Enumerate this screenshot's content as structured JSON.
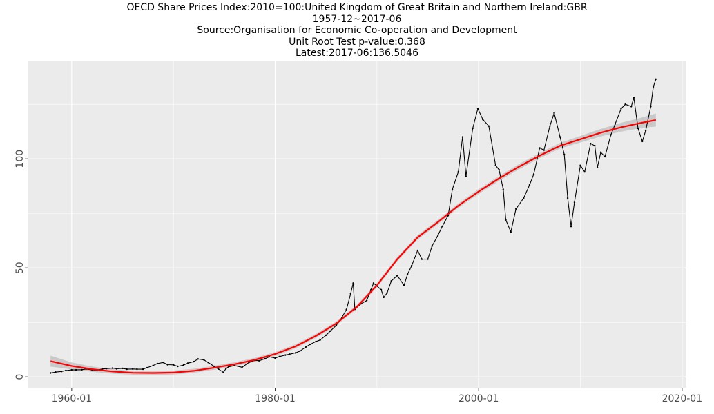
{
  "colors": {
    "panel_background": "#EBEBEB",
    "grid_major": "#FFFFFF",
    "series_line": "#000000",
    "trend_line": "#FF0000",
    "confidence_band": "#BDBDBD"
  },
  "chart_data": {
    "type": "line",
    "title_lines": [
      "OECD Share Prices Index:2010=100:United Kingdom of Great Britain and Northern Ireland:GBR",
      "1957-12~2017-06",
      "Source:Organisation for Economic Co-operation and Development",
      "Unit Root Test p-value:0.368",
      "Latest:2017-06:136.5046"
    ],
    "xlabel": "",
    "ylabel": "",
    "x_axis": {
      "type": "date",
      "range": [
        "1955-09",
        "2020-06"
      ],
      "ticks": [
        1960,
        1980,
        2000,
        2020
      ],
      "tick_labels": [
        "1960-01",
        "1980-01",
        "2000-01",
        "2020-01"
      ]
    },
    "y_axis": {
      "range": [
        -5,
        145
      ],
      "ticks": [
        0,
        50,
        100
      ],
      "tick_labels": [
        "0",
        "50",
        "100"
      ]
    },
    "grid": true,
    "legend": "none",
    "series": [
      {
        "role": "observed",
        "style": "black line with point markers",
        "points": [
          [
            "1957-12",
            1.8
          ],
          [
            "1958-06",
            2.2
          ],
          [
            "1959-01",
            2.5
          ],
          [
            "1959-06",
            2.9
          ],
          [
            "1960-01",
            3.2
          ],
          [
            "1960-06",
            3.2
          ],
          [
            "1961-01",
            3.3
          ],
          [
            "1961-06",
            3.6
          ],
          [
            "1962-01",
            3.2
          ],
          [
            "1962-06",
            3.0
          ],
          [
            "1963-01",
            3.6
          ],
          [
            "1963-06",
            3.8
          ],
          [
            "1964-01",
            4.0
          ],
          [
            "1964-06",
            3.7
          ],
          [
            "1965-01",
            3.9
          ],
          [
            "1965-06",
            3.5
          ],
          [
            "1966-01",
            3.6
          ],
          [
            "1966-06",
            3.5
          ],
          [
            "1967-01",
            3.5
          ],
          [
            "1967-06",
            4.2
          ],
          [
            "1968-01",
            5.2
          ],
          [
            "1968-06",
            6.1
          ],
          [
            "1969-01",
            6.6
          ],
          [
            "1969-06",
            5.6
          ],
          [
            "1970-01",
            5.5
          ],
          [
            "1970-06",
            4.8
          ],
          [
            "1971-01",
            5.4
          ],
          [
            "1971-06",
            6.3
          ],
          [
            "1972-01",
            7.0
          ],
          [
            "1972-06",
            8.2
          ],
          [
            "1973-01",
            7.8
          ],
          [
            "1973-06",
            6.6
          ],
          [
            "1974-01",
            4.8
          ],
          [
            "1974-06",
            3.6
          ],
          [
            "1974-12",
            2.1
          ],
          [
            "1975-03",
            3.8
          ],
          [
            "1975-06",
            4.6
          ],
          [
            "1976-01",
            5.2
          ],
          [
            "1976-10",
            4.4
          ],
          [
            "1977-06",
            6.6
          ],
          [
            "1978-01",
            7.6
          ],
          [
            "1978-06",
            7.4
          ],
          [
            "1979-01",
            8.3
          ],
          [
            "1979-06",
            9.2
          ],
          [
            "1980-01",
            8.6
          ],
          [
            "1980-06",
            9.3
          ],
          [
            "1981-01",
            10.0
          ],
          [
            "1981-06",
            10.4
          ],
          [
            "1982-01",
            11.0
          ],
          [
            "1982-06",
            11.8
          ],
          [
            "1983-01",
            13.6
          ],
          [
            "1983-06",
            14.9
          ],
          [
            "1984-01",
            16.2
          ],
          [
            "1984-06",
            16.9
          ],
          [
            "1985-01",
            19.1
          ],
          [
            "1985-06",
            21.0
          ],
          [
            "1986-01",
            23.6
          ],
          [
            "1986-06",
            26.2
          ],
          [
            "1987-01",
            30.9
          ],
          [
            "1987-06",
            38.1
          ],
          [
            "1987-09",
            43.0
          ],
          [
            "1987-11",
            31.0
          ],
          [
            "1988-06",
            33.5
          ],
          [
            "1989-01",
            35.0
          ],
          [
            "1989-06",
            40.0
          ],
          [
            "1989-09",
            43.0
          ],
          [
            "1990-06",
            40.0
          ],
          [
            "1990-09",
            36.5
          ],
          [
            "1991-01",
            38.5
          ],
          [
            "1991-06",
            44.0
          ],
          [
            "1992-01",
            46.5
          ],
          [
            "1992-09",
            42.0
          ],
          [
            "1993-01",
            47.0
          ],
          [
            "1993-06",
            51.0
          ],
          [
            "1994-01",
            58.0
          ],
          [
            "1994-06",
            54.0
          ],
          [
            "1995-01",
            54.0
          ],
          [
            "1995-06",
            60.0
          ],
          [
            "1996-01",
            65.0
          ],
          [
            "1996-06",
            69.0
          ],
          [
            "1997-01",
            74.0
          ],
          [
            "1997-06",
            86.0
          ],
          [
            "1998-01",
            94.0
          ],
          [
            "1998-06",
            110.0
          ],
          [
            "1998-10",
            92.0
          ],
          [
            "1999-06",
            114.0
          ],
          [
            "1999-12",
            123.0
          ],
          [
            "2000-06",
            118.0
          ],
          [
            "2001-01",
            115.0
          ],
          [
            "2001-09",
            97.0
          ],
          [
            "2002-01",
            95.0
          ],
          [
            "2002-06",
            86.0
          ],
          [
            "2002-09",
            72.0
          ],
          [
            "2003-03",
            66.5
          ],
          [
            "2003-09",
            77.0
          ],
          [
            "2004-06",
            82.0
          ],
          [
            "2005-01",
            88.0
          ],
          [
            "2005-06",
            93.0
          ],
          [
            "2006-01",
            105.0
          ],
          [
            "2006-06",
            104.0
          ],
          [
            "2007-01",
            115.0
          ],
          [
            "2007-06",
            121.0
          ],
          [
            "2008-01",
            110.0
          ],
          [
            "2008-06",
            102.0
          ],
          [
            "2008-10",
            82.0
          ],
          [
            "2009-02",
            69.0
          ],
          [
            "2009-06",
            80.0
          ],
          [
            "2010-01",
            97.0
          ],
          [
            "2010-06",
            94.0
          ],
          [
            "2011-01",
            107.0
          ],
          [
            "2011-06",
            106.0
          ],
          [
            "2011-09",
            96.0
          ],
          [
            "2012-01",
            103.0
          ],
          [
            "2012-06",
            101.0
          ],
          [
            "2013-01",
            111.0
          ],
          [
            "2013-06",
            116.0
          ],
          [
            "2014-01",
            123.0
          ],
          [
            "2014-06",
            125.0
          ],
          [
            "2015-01",
            124.0
          ],
          [
            "2015-04",
            128.0
          ],
          [
            "2015-09",
            114.0
          ],
          [
            "2016-02",
            108.0
          ],
          [
            "2016-06",
            113.0
          ],
          [
            "2016-12",
            124.0
          ],
          [
            "2017-03",
            133.0
          ],
          [
            "2017-06",
            136.5046
          ]
        ]
      },
      {
        "role": "smoothed trend",
        "style": "red line with grey confidence band",
        "points": [
          [
            "1957-12",
            7.2
          ],
          [
            "1960-01",
            5.0
          ],
          [
            "1962-01",
            3.5
          ],
          [
            "1964-01",
            2.5
          ],
          [
            "1966-01",
            1.9
          ],
          [
            "1968-01",
            1.8
          ],
          [
            "1970-01",
            2.0
          ],
          [
            "1972-01",
            2.8
          ],
          [
            "1974-01",
            4.2
          ],
          [
            "1976-01",
            5.8
          ],
          [
            "1978-01",
            7.8
          ],
          [
            "1980-01",
            10.5
          ],
          [
            "1982-01",
            14.0
          ],
          [
            "1984-01",
            18.8
          ],
          [
            "1986-01",
            24.5
          ],
          [
            "1988-01",
            32.0
          ],
          [
            "1990-01",
            42.0
          ],
          [
            "1992-01",
            54.0
          ],
          [
            "1994-01",
            64.0
          ],
          [
            "1996-01",
            71.0
          ],
          [
            "1998-01",
            78.5
          ],
          [
            "2000-01",
            85.0
          ],
          [
            "2002-01",
            91.0
          ],
          [
            "2004-01",
            96.5
          ],
          [
            "2006-01",
            101.5
          ],
          [
            "2008-01",
            106.0
          ],
          [
            "2010-01",
            109.0
          ],
          [
            "2012-01",
            112.0
          ],
          [
            "2014-01",
            114.5
          ],
          [
            "2016-01",
            116.5
          ],
          [
            "2017-06",
            117.8
          ]
        ],
        "band_halfwidth": [
          2.5,
          1.6,
          1.2,
          1.0,
          0.9,
          0.9,
          0.9,
          0.9,
          0.9,
          0.9,
          0.9,
          0.9,
          0.9,
          0.9,
          0.9,
          0.9,
          1.0,
          1.0,
          1.0,
          1.0,
          1.0,
          1.1,
          1.1,
          1.2,
          1.2,
          1.3,
          1.5,
          1.7,
          2.0,
          2.4,
          3.0
        ]
      }
    ]
  }
}
